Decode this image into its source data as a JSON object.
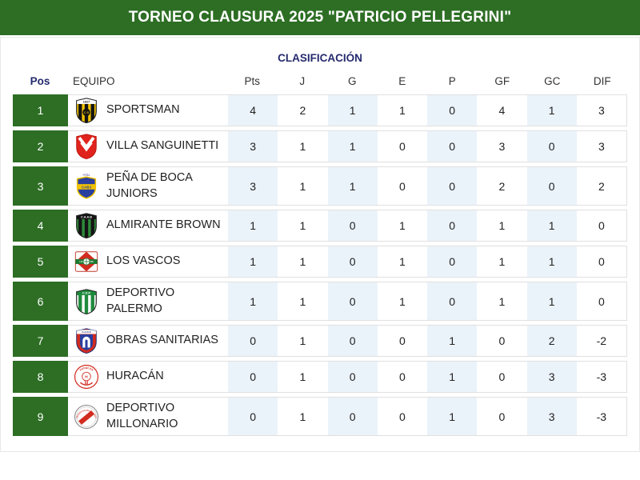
{
  "banner": {
    "title": "TORNEO CLAUSURA 2025 \"PATRICIO PELLEGRINI\"",
    "bg_color": "#2d6e24"
  },
  "section_title": "CLASIFICACIÓN",
  "colors": {
    "banner_green": "#2d6e24",
    "position_badge_green": "#2d6e24",
    "heading_navy": "#252a6e",
    "column_highlight_blue": "#ebf3fa",
    "row_border": "#e0e0e0"
  },
  "table": {
    "headers": {
      "pos": "Pos",
      "team": "EQUIPO",
      "stats": [
        "Pts",
        "J",
        "G",
        "E",
        "P",
        "GF",
        "GC",
        "DIF"
      ]
    },
    "rows": [
      {
        "pos": "1",
        "team": "SPORTSMAN",
        "crest": "sportsman-crest",
        "stats": [
          "4",
          "2",
          "1",
          "1",
          "0",
          "4",
          "1",
          "3"
        ]
      },
      {
        "pos": "2",
        "team": "VILLA SANGUINETTI",
        "crest": "villa-sanguinetti-crest",
        "stats": [
          "3",
          "1",
          "1",
          "0",
          "0",
          "3",
          "0",
          "3"
        ]
      },
      {
        "pos": "3",
        "team": "PEÑA DE BOCA JUNIORS",
        "crest": "pena-de-boca-juniors-crest",
        "stats": [
          "3",
          "1",
          "1",
          "0",
          "0",
          "2",
          "0",
          "2"
        ]
      },
      {
        "pos": "4",
        "team": "ALMIRANTE BROWN",
        "crest": "almirante-brown-crest",
        "stats": [
          "1",
          "1",
          "0",
          "1",
          "0",
          "1",
          "1",
          "0"
        ]
      },
      {
        "pos": "5",
        "team": "LOS VASCOS",
        "crest": "los-vascos-crest",
        "stats": [
          "1",
          "1",
          "0",
          "1",
          "0",
          "1",
          "1",
          "0"
        ]
      },
      {
        "pos": "6",
        "team": "DEPORTIVO PALERMO",
        "crest": "deportivo-palermo-crest",
        "stats": [
          "1",
          "1",
          "0",
          "1",
          "0",
          "1",
          "1",
          "0"
        ]
      },
      {
        "pos": "7",
        "team": "OBRAS SANITARIAS",
        "crest": "obras-sanitarias-crest",
        "stats": [
          "0",
          "1",
          "0",
          "0",
          "1",
          "0",
          "2",
          "-2"
        ]
      },
      {
        "pos": "8",
        "team": "HURACÁN",
        "crest": "huracan-crest",
        "stats": [
          "0",
          "1",
          "0",
          "0",
          "1",
          "0",
          "3",
          "-3"
        ]
      },
      {
        "pos": "9",
        "team": "DEPORTIVO MILLONARIO",
        "crest": "deportivo-millonario-crest",
        "stats": [
          "0",
          "1",
          "0",
          "0",
          "1",
          "0",
          "3",
          "-3"
        ]
      }
    ]
  },
  "crests": {
    "sportsman-crest": {
      "style": "striped-shield",
      "field": "#f2c200",
      "stripe": "#141414",
      "chief": "#ffffff",
      "chief_text": "1927",
      "chief_text_color": "#141414",
      "center_badge": {
        "bg": "#141414",
        "text": "C S",
        "color": "#f2c200"
      }
    },
    "villa-sanguinetti-crest": {
      "style": "v-shield",
      "field": "#e0231c",
      "mark": "#ffffff"
    },
    "pena-de-boca-juniors-crest": {
      "style": "band-shield",
      "field": "#2a3f9e",
      "band": "#f2c200",
      "band_text": "CABJ",
      "border": "#f2c200",
      "top_text": "PEÑA"
    },
    "almirante-brown-crest": {
      "style": "striped-shield",
      "field": "#2e8b3a",
      "stripe": "#141414",
      "chief": "#141414",
      "chief_text": "C.A.A.B",
      "chief_text_color": "#ffffff"
    },
    "los-vascos-crest": {
      "style": "basque-emblem",
      "field": "#ffffff",
      "diamond": "#d22b1f",
      "band": "#1f7a33",
      "band_text": "LOS VASCOS"
    },
    "deportivo-palermo-crest": {
      "style": "striped-shield",
      "field": "#ffffff",
      "stripe": "#1f8a3d",
      "chief": "#1f8a3d",
      "chief_text": "C.D.P",
      "chief_text_color": "#ffffff"
    },
    "obras-sanitarias-crest": {
      "style": "arch-shield",
      "field": "#d22b1f",
      "panel": "#2a3f9e",
      "arch": "#ffffff",
      "chief_text": "C.A.O.S"
    },
    "huracan-crest": {
      "style": "balloon-circle",
      "field": "#ffffff",
      "ring": "#d22b1f",
      "emblem": "#d22b1f",
      "letter": "H",
      "arc_text": "HURACAN"
    },
    "deportivo-millonario-crest": {
      "style": "sash-circle",
      "field": "#ffffff",
      "ring": "#777777",
      "sash": "#d22b1f",
      "arc_text": "DEPORTIVO MILLONARIO"
    }
  }
}
